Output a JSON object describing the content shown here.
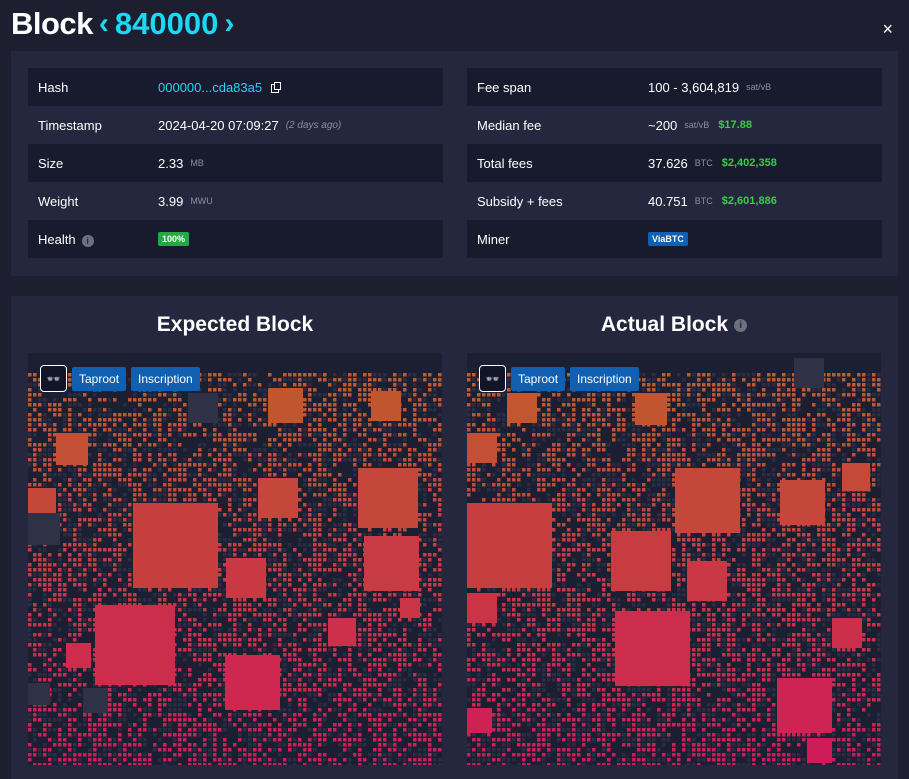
{
  "header": {
    "title": "Block",
    "prev_arrow": "‹",
    "height": "840000",
    "next_arrow": "›",
    "close": "×"
  },
  "details": {
    "left": [
      {
        "label": "Hash",
        "value": "000000...cda83a5"
      },
      {
        "label": "Timestamp",
        "value": "2024-04-20 07:09:27",
        "note": "(2 days ago)"
      },
      {
        "label": "Size",
        "value": "2.33",
        "unit": "MB"
      },
      {
        "label": "Weight",
        "value": "3.99",
        "unit": "MWU"
      },
      {
        "label": "Health",
        "badge": "100%"
      }
    ],
    "right": [
      {
        "label": "Fee span",
        "value": "100 - 3,604,819",
        "unit": "sat/vB"
      },
      {
        "label": "Median fee",
        "value": "~200",
        "unit": "sat/vB",
        "usd": "$17.88"
      },
      {
        "label": "Total fees",
        "value": "37.626",
        "unit": "BTC",
        "usd": "$2,402,358"
      },
      {
        "label": "Subsidy + fees",
        "value": "40.751",
        "unit": "BTC",
        "usd": "$2,601,886"
      },
      {
        "label": "Miner",
        "badge": "ViaBTC"
      }
    ]
  },
  "panels": {
    "expected": {
      "title": "Expected Block",
      "filters": [
        "Taproot",
        "Inscription"
      ]
    },
    "actual": {
      "title": "Actual Block",
      "filters": [
        "Taproot",
        "Inscription"
      ]
    }
  },
  "colors": {
    "accent": "#1bd8f4",
    "usd": "#3bcc49",
    "badge_green": "#28a745",
    "badge_blue": "#105fb0"
  },
  "icons": [
    "copy-icon",
    "info-icon",
    "goggles-icon",
    "close-icon",
    "chevron-left-icon",
    "chevron-right-icon"
  ]
}
